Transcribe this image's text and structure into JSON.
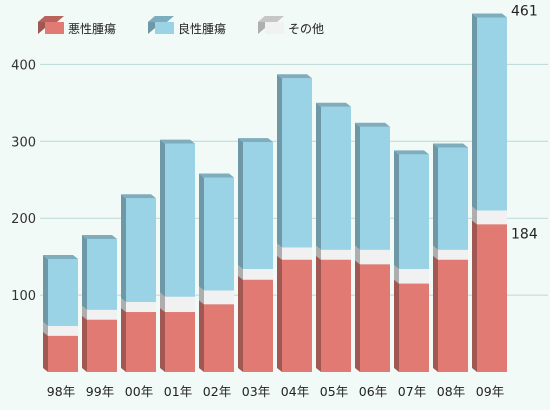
{
  "chart_data": {
    "type": "bar",
    "stacked": true,
    "style": "3d",
    "categories": [
      "98年",
      "99年",
      "00年",
      "01年",
      "02年",
      "03年",
      "04年",
      "05年",
      "06年",
      "07年",
      "08年",
      "09年"
    ],
    "series": [
      {
        "name": "悪性腫瘍",
        "color": "#e07a72",
        "values": [
          47,
          68,
          78,
          78,
          88,
          120,
          146,
          146,
          140,
          115,
          146,
          192
        ]
      },
      {
        "name": "その他",
        "color": "#f1f1f1",
        "values": [
          13,
          13,
          13,
          20,
          18,
          14,
          16,
          13,
          19,
          19,
          13,
          18
        ]
      },
      {
        "name": "良性腫瘍",
        "color": "#9ad3e6",
        "values": [
          87,
          92,
          135,
          199,
          147,
          165,
          220,
          186,
          160,
          149,
          133,
          251
        ]
      }
    ],
    "yticks": [
      100,
      200,
      300,
      400
    ],
    "ylim": [
      0,
      480
    ],
    "grid": true,
    "legend": "top-left",
    "annotations": [
      {
        "category": "09年",
        "text": "461"
      },
      {
        "category": "09年",
        "text": "184"
      }
    ]
  }
}
